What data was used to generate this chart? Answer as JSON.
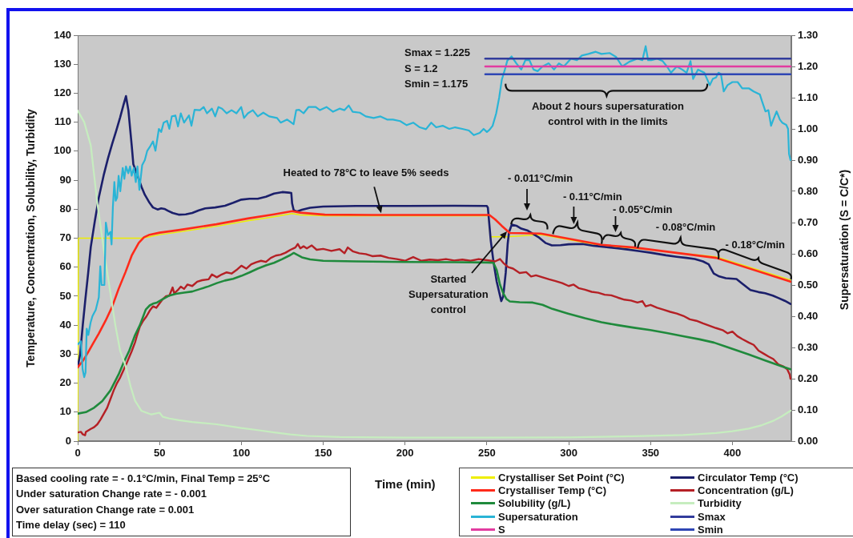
{
  "chart_data": {
    "type": "line",
    "xlabel": "Time (min)",
    "ylabel": "Temperature, Concentration, Solubility, Turbidity",
    "y2label": "Supersaturation (S = C/C*)",
    "xlim": [
      0,
      436
    ],
    "xticks": [
      0,
      50,
      100,
      150,
      200,
      250,
      300,
      350,
      400
    ],
    "ylim": [
      0,
      140
    ],
    "yticks": [
      0,
      10,
      20,
      30,
      40,
      50,
      60,
      70,
      80,
      90,
      100,
      110,
      120,
      130,
      140
    ],
    "y2lim": [
      0,
      1.3
    ],
    "y2ticks": [
      {
        "value": 0,
        "label": "0.00"
      },
      {
        "value": 0.1,
        "label": "0.10"
      },
      {
        "value": 0.2,
        "label": "0.20"
      },
      {
        "value": 0.3,
        "label": "0.30"
      },
      {
        "value": 0.4,
        "label": "0.40"
      },
      {
        "value": 0.5,
        "label": "0.50"
      },
      {
        "value": 0.6,
        "label": "0.60"
      },
      {
        "value": 0.7,
        "label": "0.70"
      },
      {
        "value": 0.8,
        "label": "0.80"
      },
      {
        "value": 0.9,
        "label": "0.90"
      },
      {
        "value": 1,
        "label": "1.00"
      },
      {
        "value": 1.1,
        "label": "1.10"
      },
      {
        "value": 1.2,
        "label": "1.20"
      },
      {
        "value": 1.3,
        "label": "1.30"
      }
    ],
    "marker": "none",
    "legend": "bottom right",
    "series": [
      {
        "name": "Crystalliser Set Point (°C)",
        "color": "#eeee00",
        "x": [
          0,
          0.5,
          39,
          43.9,
          50,
          61.7,
          84.7,
          104,
          120,
          131,
          136,
          151,
          251,
          252,
          262,
          283,
          320,
          340,
          390,
          435.5
        ],
        "values": [
          0,
          70,
          70,
          70.5,
          71.2,
          72.1,
          74.1,
          76,
          77.4,
          78.5,
          78,
          77.7,
          77.7,
          70.5,
          70.5,
          71.2,
          67.4,
          66.5,
          63.6,
          55.6
        ]
      },
      {
        "name": "Circulator Temp (°C)",
        "color": "#1b1f6b",
        "x": [
          0,
          1.5,
          3.1,
          4.7,
          6.4,
          8,
          10.5,
          12.9,
          16,
          18.5,
          21,
          23.5,
          25.9,
          28,
          29.5,
          31,
          33,
          34,
          36,
          39,
          41,
          43.9,
          46,
          48.8,
          51,
          53,
          55,
          58,
          62,
          66,
          70,
          74,
          78,
          84,
          90,
          95,
          100,
          105,
          110,
          115,
          120,
          125,
          129,
          130.5,
          131,
          132,
          134,
          137,
          142,
          150,
          170,
          200,
          230,
          250,
          250.6,
          252.4,
          254,
          256,
          258.8,
          260,
          261.5,
          262.7,
          263.5,
          265.2,
          268,
          271,
          275,
          281.4,
          286,
          289.7,
          295,
          300,
          308.5,
          315,
          322,
          330,
          336,
          342.5,
          350,
          359.5,
          366,
          372,
          377,
          382,
          385.5,
          388.6,
          392,
          396,
          402.5,
          406,
          411,
          416,
          420,
          424.7,
          428,
          432,
          435.5
        ],
        "values": [
          25.4,
          30,
          40,
          49,
          58,
          67,
          76,
          84,
          92,
          97.5,
          102.4,
          107,
          111.6,
          116,
          119,
          114,
          102,
          95.5,
          92.5,
          87.7,
          85,
          82.2,
          80.6,
          79.9,
          80.3,
          80.1,
          79.5,
          78.7,
          78.1,
          78.2,
          78.7,
          79.6,
          80.3,
          80.6,
          81.2,
          82.2,
          83.3,
          83.6,
          83.6,
          84.3,
          85.4,
          85.9,
          85.7,
          85.6,
          82,
          79.6,
          79.2,
          79.8,
          80.5,
          80.9,
          81.1,
          81.1,
          81.2,
          81.1,
          80.5,
          69,
          62,
          55,
          48.3,
          50,
          58,
          68,
          72,
          74.7,
          74.3,
          73.3,
          72.6,
          70.4,
          68.3,
          67.5,
          67.6,
          67.9,
          68,
          67.4,
          67,
          66.5,
          66.1,
          65.6,
          65,
          64.1,
          63.6,
          63.2,
          62.8,
          62,
          61,
          57.8,
          56.8,
          56.2,
          55.9,
          54.3,
          52.1,
          51.4,
          51,
          50.2,
          49.4,
          48.4,
          47.3
        ]
      },
      {
        "name": "Crystalliser Temp (°C)",
        "color": "#ff2a1a",
        "x": [
          0,
          3,
          6.4,
          9.5,
          12.9,
          17,
          21,
          25,
          29.2,
          33,
          37.3,
          40.5,
          43.9,
          50,
          61.7,
          84.7,
          104,
          120,
          131,
          136,
          151,
          180,
          220,
          251.5,
          255,
          259,
          264,
          283,
          320,
          340,
          390,
          435.5
        ],
        "values": [
          25.5,
          27.5,
          30.7,
          33.8,
          37.1,
          41.5,
          46.3,
          52.5,
          58.3,
          64,
          68.4,
          70.3,
          71.2,
          71.9,
          72.8,
          74.8,
          76.8,
          78.2,
          79.3,
          78.8,
          78.1,
          78,
          78,
          78,
          76.5,
          74.3,
          71.8,
          71.6,
          67.7,
          66.8,
          63.2,
          55
        ]
      },
      {
        "name": "Concentration (g/L)",
        "color": "#b52025",
        "x": [
          0,
          2,
          3,
          4.5,
          5,
          8,
          10,
          12,
          14,
          16,
          18,
          20,
          22,
          24,
          26,
          28,
          30,
          31.5,
          33,
          35,
          36,
          38,
          40,
          42,
          44,
          46,
          48,
          50,
          52,
          54,
          56,
          58,
          59,
          61,
          63,
          65,
          67,
          70,
          73,
          76,
          80,
          82,
          85,
          88,
          91,
          94,
          97,
          100,
          103,
          106,
          109,
          112,
          115,
          118,
          121,
          124,
          127,
          130,
          133,
          134.5,
          136,
          138,
          140,
          143,
          146,
          150,
          155,
          160,
          163,
          165,
          168,
          172,
          176,
          180,
          185,
          190,
          195,
          200,
          205,
          210,
          215,
          220,
          225,
          230,
          235,
          240,
          245,
          250,
          255,
          258,
          260,
          263,
          266,
          270,
          274,
          277,
          280,
          284,
          288,
          292,
          296,
          300,
          303,
          306,
          310,
          314,
          318,
          322,
          326,
          330,
          334,
          338,
          342,
          345,
          347,
          350,
          354,
          358,
          362,
          366,
          370,
          374,
          378,
          382,
          386,
          390,
          394,
          397,
          400,
          403,
          406,
          410,
          413,
          416,
          419,
          422,
          425,
          428,
          431,
          433.5,
          435,
          435.5
        ],
        "values": [
          3,
          3.2,
          2.4,
          2,
          3.2,
          4.2,
          4.8,
          5.8,
          7.5,
          9.5,
          11.5,
          14.5,
          17.5,
          20,
          22,
          24.5,
          27,
          29,
          31,
          34,
          36,
          39.5,
          41.5,
          43,
          45,
          46.5,
          46,
          47.5,
          49,
          50,
          50.2,
          53,
          51,
          52,
          53.3,
          52.5,
          54,
          53.5,
          55,
          55.5,
          55.8,
          57.5,
          56.5,
          57.5,
          58.2,
          57.8,
          59,
          60.5,
          59.5,
          61,
          61.7,
          62.2,
          61.8,
          63.2,
          64,
          64.3,
          65,
          66,
          66.8,
          68,
          66.5,
          67.2,
          66.5,
          67.5,
          66,
          66.3,
          65.6,
          66.2,
          64.8,
          66.8,
          65.5,
          64.8,
          64.5,
          63.8,
          64,
          63.2,
          62.8,
          62.2,
          63.5,
          62.2,
          62.6,
          62.4,
          62.8,
          62.3,
          62.6,
          62.2,
          62.8,
          62.4,
          62,
          62.8,
          61.5,
          60,
          59.5,
          58,
          58.3,
          56.8,
          57.2,
          56.5,
          55.8,
          55.2,
          54.5,
          53.5,
          54,
          52.8,
          52.2,
          51.5,
          51.2,
          50.5,
          50.3,
          49.5,
          48.8,
          48.5,
          47.8,
          48.3,
          46.5,
          47,
          46,
          45.3,
          44.6,
          44,
          43.2,
          42,
          41.5,
          40.6,
          39.8,
          39,
          38.3,
          37.2,
          37.8,
          36.2,
          35.2,
          34,
          33.2,
          31.2,
          30.2,
          29.2,
          28.3,
          26.5,
          25.8,
          24.8,
          23,
          21.5
        ]
      },
      {
        "name": "Solubility (g/L)",
        "color": "#1f8a3c",
        "x": [
          0,
          5,
          10,
          15,
          20,
          25,
          28,
          31.5,
          35,
          38,
          41.6,
          44,
          46,
          48.4,
          52,
          56,
          60,
          65,
          70,
          75,
          80,
          85,
          90,
          95,
          100,
          105,
          110,
          115,
          120,
          125,
          130,
          132,
          134,
          137,
          142,
          150,
          170,
          200,
          230,
          250,
          254,
          256,
          258,
          260,
          262,
          264,
          270,
          278,
          284,
          290,
          299.6,
          310,
          320,
          330,
          340,
          349.8,
          360,
          370,
          380,
          388.7,
          395,
          400,
          410,
          420,
          430,
          435.5
        ],
        "values": [
          9.5,
          10,
          11.5,
          13.8,
          17.5,
          23,
          27,
          31.2,
          36.5,
          40,
          45.4,
          46.8,
          47.4,
          47.8,
          49,
          50.2,
          50.8,
          51.2,
          51.6,
          52.5,
          53.4,
          54.5,
          55.4,
          56,
          57,
          58.2,
          59.5,
          60.6,
          61.5,
          62.8,
          64.2,
          64.9,
          64.3,
          63.4,
          62.7,
          62.2,
          62,
          61.8,
          61.7,
          61.6,
          61.5,
          59,
          54,
          51,
          49,
          48.2,
          47.9,
          47.8,
          47,
          45.6,
          44,
          42.4,
          41,
          40,
          39.1,
          38.3,
          37.3,
          36.2,
          35.1,
          34,
          32.8,
          31.8,
          29.9,
          27.8,
          25.8,
          24.8
        ]
      },
      {
        "name": "Turbidity",
        "color": "#c6edbf",
        "x": [
          0,
          4,
          8,
          12,
          16,
          20,
          23,
          26,
          29.2,
          32.4,
          35,
          39,
          45,
          50,
          52,
          56,
          62,
          70,
          85,
          100,
          110,
          120,
          130,
          140,
          160,
          200,
          250,
          300,
          340,
          370,
          390,
          400,
          410,
          418,
          425,
          430,
          435.5
        ],
        "values": [
          114,
          110,
          102,
          82,
          66,
          51,
          40,
          31,
          26,
          18.7,
          14,
          10.4,
          9.2,
          9.8,
          8.4,
          7.8,
          7.2,
          6.6,
          5.8,
          4.5,
          3.8,
          3,
          2.3,
          1.8,
          1.4,
          1.2,
          1.2,
          1.3,
          1.7,
          2.1,
          2.8,
          3.4,
          4.3,
          5.5,
          7,
          8.5,
          10.5
        ]
      },
      {
        "name": "Supersaturation",
        "color": "#2ab4d6",
        "axis": "y2",
        "x": [
          0,
          2,
          3,
          4,
          4.8,
          5.5,
          6.5,
          7.9,
          9,
          10,
          11,
          12.9,
          13.8,
          14.6,
          16.3,
          17.2,
          18.5,
          20,
          20.7,
          21.5,
          22.4,
          23.2,
          24.1,
          25,
          26,
          27.5,
          28.5,
          29.5,
          30.9,
          32,
          33,
          34.3,
          35.5,
          36.5,
          37.7,
          39.4,
          41,
          42.5,
          44.5,
          46,
          47.5,
          49.6,
          51,
          52.5,
          54.6,
          56,
          57.5,
          59.7,
          61.3,
          63,
          65,
          68,
          69.5,
          71.4,
          74.7,
          77,
          79,
          82,
          84,
          86,
          88.2,
          91,
          94,
          97,
          99.9,
          101.6,
          104,
          107,
          110,
          113.4,
          117,
          121.8,
          124,
          128,
          131.9,
          133.5,
          135.3,
          138,
          141,
          145.4,
          148,
          152,
          156,
          160,
          163,
          165.6,
          168,
          172.4,
          176,
          180.8,
          185,
          189,
          192.6,
          197,
          201,
          205,
          209,
          212.8,
          216,
          219,
          223,
          227,
          230.6,
          235,
          239,
          242,
          245.6,
          248,
          250,
          251.6,
          253.5,
          255.7,
          257.5,
          259.1,
          261,
          262.5,
          265.1,
          268,
          271,
          273.5,
          276,
          278.5,
          281,
          284,
          287.8,
          291,
          294,
          297,
          301.4,
          305,
          308,
          312,
          316.5,
          320,
          325,
          329,
          332.7,
          337,
          342,
          345,
          347,
          348.5,
          350.5,
          354,
          357.4,
          360,
          362.5,
          366,
          369.3,
          372,
          374.4,
          376,
          379,
          382.8,
          384.5,
          386.2,
          388,
          390,
          391.5,
          393,
          394.7,
          397,
          400,
          403.2,
          406,
          410,
          413,
          416.8,
          418,
          420.2,
          422,
          423.6,
          425,
          427,
          429,
          430.4,
          432.9,
          434,
          434.6,
          435.5
        ],
        "values": [
          0.31,
          0.32,
          0.23,
          0.205,
          0.22,
          0.36,
          0.34,
          0.38,
          0.4,
          0.41,
          0.42,
          0.46,
          0.56,
          0.5,
          0.5,
          0.7,
          0.66,
          0.67,
          0.63,
          0.75,
          0.83,
          0.77,
          0.78,
          0.85,
          0.8,
          0.875,
          0.84,
          0.88,
          0.858,
          0.88,
          0.85,
          0.875,
          0.83,
          0.88,
          0.805,
          0.884,
          0.9,
          0.93,
          0.946,
          0.96,
          0.93,
          1,
          0.99,
          1.02,
          1.026,
          1,
          1.04,
          1.043,
          1.008,
          1.05,
          1.02,
          1.043,
          1.01,
          1.061,
          1.06,
          1.07,
          1.05,
          1.065,
          1.04,
          1.07,
          1.065,
          1.05,
          1.06,
          1.05,
          1.07,
          1.035,
          1.05,
          1.06,
          1.04,
          1.052,
          1.04,
          1.035,
          1.02,
          1.03,
          1.015,
          1.06,
          1.061,
          1.05,
          1.07,
          1.07,
          1.06,
          1.07,
          1.055,
          1.065,
          1.06,
          1.075,
          1.055,
          1.052,
          1.04,
          1.035,
          1.04,
          1.03,
          1.03,
          1.025,
          1.012,
          1.02,
          1.005,
          0.999,
          1.02,
          1.005,
          1.01,
          1,
          1.005,
          1,
          0.995,
          0.98,
          0.987,
          1,
          0.99,
          0.997,
          1.01,
          1.05,
          1.1,
          1.157,
          1.19,
          1.219,
          1.232,
          1.21,
          1.19,
          1.22,
          1.22,
          1.19,
          1.185,
          1.2,
          1.21,
          1.19,
          1.21,
          1.2,
          1.225,
          1.22,
          1.235,
          1.24,
          1.247,
          1.24,
          1.243,
          1.23,
          1.2,
          1.215,
          1.225,
          1.22,
          1.265,
          1.22,
          1.22,
          1.225,
          1.217,
          1.2,
          1.18,
          1.2,
          1.19,
          1.18,
          1.217,
          1.16,
          1.19,
          1.18,
          1.16,
          1.14,
          1.16,
          1.165,
          1.18,
          1.175,
          1.12,
          1.14,
          1.15,
          1.15,
          1.13,
          1.13,
          1.12,
          1.11,
          1.09,
          1.056,
          1.06,
          1.01,
          1.03,
          1.056,
          1.03,
          1.02,
          1.013,
          1,
          0.92,
          0.9
        ]
      },
      {
        "name": "Smax",
        "color": "#323c9c",
        "axis": "y2",
        "x": [
          249,
          435.5
        ],
        "values": [
          1.225,
          1.225
        ]
      },
      {
        "name": "S",
        "color": "#e23ca0",
        "axis": "y2",
        "x": [
          249,
          435.5
        ],
        "values": [
          1.2,
          1.2
        ]
      },
      {
        "name": "Smin",
        "color": "#2f46b4",
        "axis": "y2",
        "x": [
          249,
          435.5
        ],
        "values": [
          1.175,
          1.175
        ]
      }
    ],
    "annotations": [
      "Smax = 1.225",
      "S = 1.2",
      "Smin = 1.175",
      "About 2 hours supersaturation control with in the limits",
      "Heated to 78°C to leave 5% seeds",
      "Started Supersaturation control",
      "- 0.011°C/min",
      "- 0.11°C/min",
      {
        "text": "- 0.05°C/min",
        "x": 330,
        "y": 67.2
      },
      {
        "text": "- 0.08°C/min",
        "x": 366,
        "y": 64.9
      },
      {
        "text": "- 0.18°C/min",
        "x": 413,
        "y": 59.1
      },
      "Based cooling rate = - 0.1°C/min, Final Temp = 25°C",
      "Under saturation Change rate = - 0.001",
      "Over saturation Change rate = 0.001",
      "Time delay (sec) = 110"
    ]
  }
}
